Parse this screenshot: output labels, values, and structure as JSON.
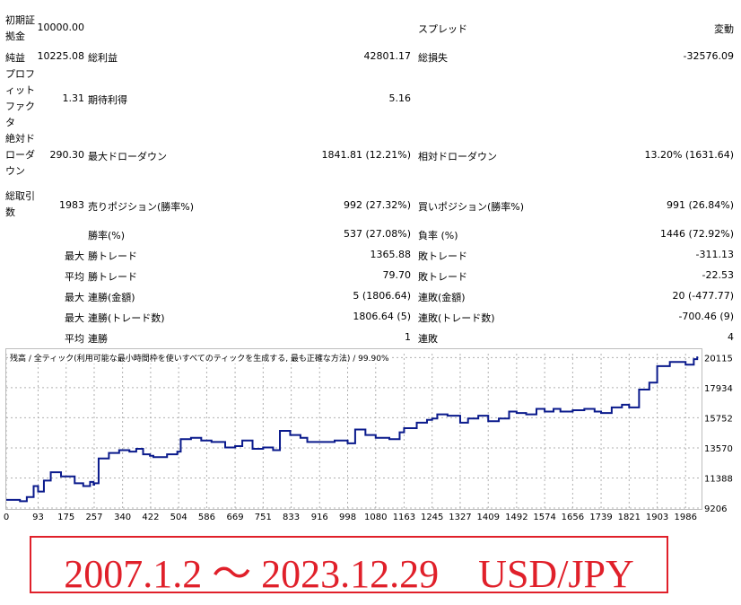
{
  "stats": {
    "initial_deposit": {
      "label": "初期証拠金",
      "value": "10000.00"
    },
    "spread": {
      "label": "スプレッド",
      "value": "変動"
    },
    "net_profit": {
      "label": "純益",
      "value": "10225.08"
    },
    "gross_profit": {
      "label": "総利益",
      "value": "42801.17"
    },
    "gross_loss": {
      "label": "総損失",
      "value": "-32576.09"
    },
    "profit_factor": {
      "label": "プロフィットファクタ",
      "value": "1.31"
    },
    "expected_payoff": {
      "label": "期待利得",
      "value": "5.16"
    },
    "absolute_drawdown": {
      "label": "絶対ドローダウン",
      "value": "290.30"
    },
    "maximal_drawdown": {
      "label": "最大ドローダウン",
      "value": "1841.81 (12.21%)"
    },
    "relative_drawdown": {
      "label": "相対ドローダウン",
      "value": "13.20% (1631.64)"
    },
    "total_trades": {
      "label": "総取引数",
      "value": "1983"
    },
    "short_positions": {
      "label": "売りポジション(勝率%)",
      "value": "992 (27.32%)"
    },
    "long_positions": {
      "label": "買いポジション(勝率%)",
      "value": "991 (26.84%)"
    },
    "profit_trades": {
      "label": "勝率(%)",
      "value": "537 (27.08%)"
    },
    "loss_trades": {
      "label": "負率 (%)",
      "value": "1446 (72.92%)"
    },
    "largest_profit": {
      "prefix": "最大",
      "label": "勝トレード",
      "value": "1365.88"
    },
    "largest_loss": {
      "label": "敗トレード",
      "value": "-311.13"
    },
    "average_profit": {
      "prefix": "平均",
      "label": "勝トレード",
      "value": "79.70"
    },
    "average_loss": {
      "label": "敗トレード",
      "value": "-22.53"
    },
    "max_consec_wins": {
      "prefix": "最大",
      "label": "連勝(金額)",
      "value": "5 (1806.64)"
    },
    "max_consec_losses": {
      "label": "連敗(金額)",
      "value": "20 (-477.77)"
    },
    "max_consec_profit": {
      "prefix": "最大",
      "label": "連勝(トレード数)",
      "value": "1806.64 (5)"
    },
    "max_consec_loss": {
      "label": "連敗(トレード数)",
      "value": "-700.46 (9)"
    },
    "avg_consec_wins": {
      "prefix": "平均",
      "label": "連勝",
      "value": "1"
    },
    "avg_consec_losses": {
      "label": "連敗",
      "value": "4"
    }
  },
  "chart_caption": "残高 / 全ティック(利用可能な最小時間枠を使いすべてのティックを生成する, 最も正確な方法) / 99.90%",
  "date_range": "2007.1.2 ～ 2023.12.29　USD/JPY",
  "colors": {
    "line": "#0a1a8c",
    "grid": "#b0b0b0",
    "accent": "#e0202a"
  },
  "chart_data": {
    "type": "line",
    "title": "",
    "xlabel": "",
    "ylabel": "",
    "x_ticks": [
      0,
      93,
      175,
      257,
      340,
      422,
      504,
      586,
      669,
      751,
      833,
      916,
      998,
      1080,
      1163,
      1245,
      1327,
      1409,
      1492,
      1574,
      1656,
      1739,
      1821,
      1903,
      1986
    ],
    "y_ticks": [
      9206,
      11388,
      13570,
      15752,
      17934,
      20115
    ],
    "xlim": [
      0,
      2030
    ],
    "ylim": [
      9206,
      20400
    ],
    "grid": true,
    "series": [
      {
        "x": [
          0,
          40,
          60,
          80,
          93,
          110,
          130,
          160,
          200,
          225,
          245,
          255,
          257,
          270,
          300,
          330,
          360,
          380,
          400,
          420,
          430,
          470,
          500,
          510,
          540,
          570,
          600,
          640,
          669,
          690,
          720,
          751,
          780,
          800,
          830,
          860,
          880,
          920,
          960,
          998,
          1020,
          1050,
          1080,
          1120,
          1150,
          1163,
          1200,
          1230,
          1245,
          1260,
          1290,
          1327,
          1350,
          1380,
          1409,
          1440,
          1470,
          1492,
          1520,
          1550,
          1574,
          1600,
          1620,
          1656,
          1690,
          1720,
          1739,
          1770,
          1800,
          1821,
          1850,
          1880,
          1903,
          1940,
          1986,
          2010,
          2020
        ],
        "y": [
          9800,
          9700,
          10000,
          10800,
          10400,
          11200,
          11800,
          11500,
          11000,
          10800,
          11100,
          10900,
          11000,
          12800,
          13200,
          13400,
          13300,
          13500,
          13100,
          13000,
          12900,
          13100,
          13300,
          14200,
          14300,
          14100,
          14000,
          13600,
          13700,
          14100,
          13500,
          13600,
          13400,
          14800,
          14500,
          14300,
          14000,
          14000,
          14100,
          13900,
          14900,
          14500,
          14300,
          14200,
          14700,
          15000,
          15400,
          15600,
          15700,
          16000,
          15900,
          15400,
          15700,
          15900,
          15500,
          15700,
          16200,
          16100,
          16000,
          16400,
          16200,
          16400,
          16200,
          16300,
          16400,
          16200,
          16100,
          16500,
          16700,
          16500,
          17800,
          18300,
          19500,
          19800,
          19600,
          20000,
          20200
        ]
      }
    ]
  }
}
